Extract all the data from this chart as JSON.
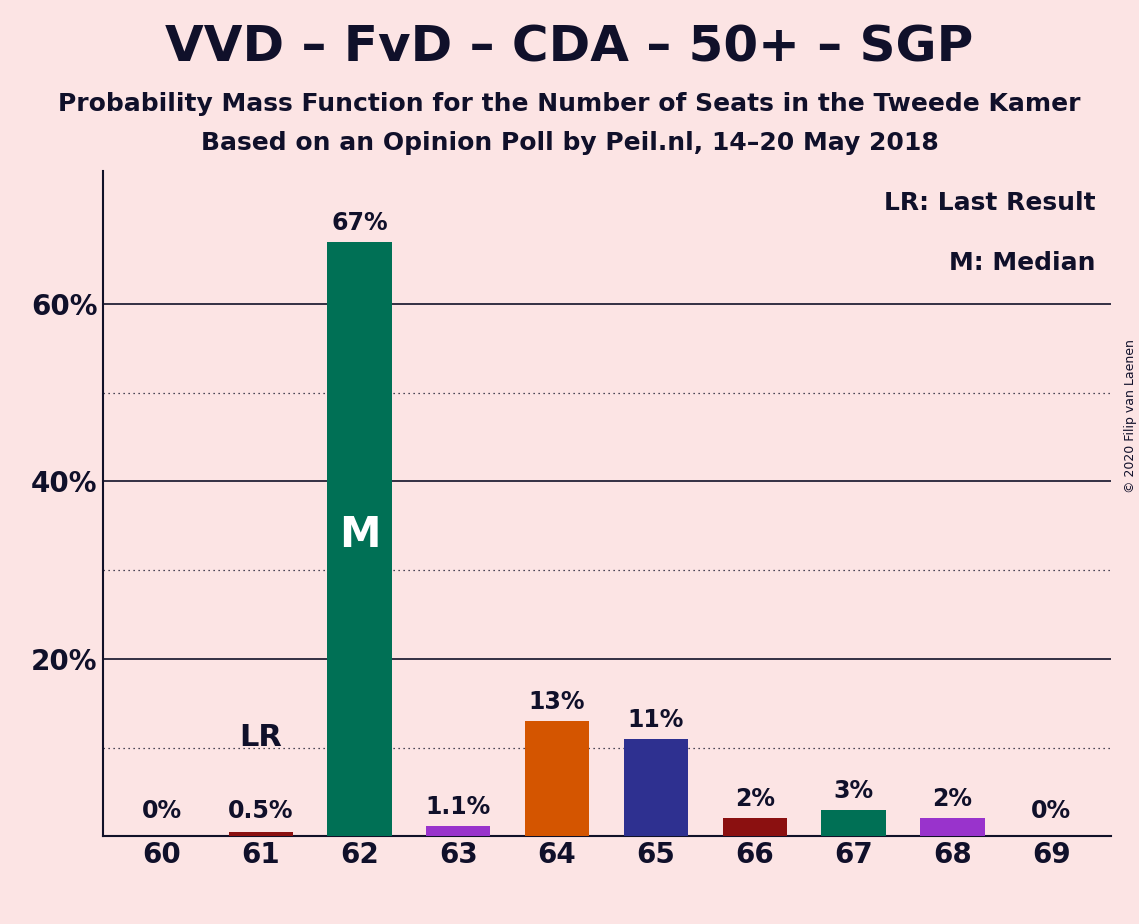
{
  "title": "VVD – FvD – CDA – 50+ – SGP",
  "subtitle1": "Probability Mass Function for the Number of Seats in the Tweede Kamer",
  "subtitle2": "Based on an Opinion Poll by Peil.nl, 14–20 May 2018",
  "copyright": "© 2020 Filip van Laenen",
  "legend_line1": "LR: Last Result",
  "legend_line2": "M: Median",
  "background_color": "#fce4e4",
  "categories": [
    60,
    61,
    62,
    63,
    64,
    65,
    66,
    67,
    68,
    69
  ],
  "values": [
    0.0,
    0.5,
    67.0,
    1.1,
    13.0,
    11.0,
    2.0,
    3.0,
    2.0,
    0.0
  ],
  "bar_colors": [
    "#f0c8c8",
    "#8b1010",
    "#007055",
    "#9933cc",
    "#d45500",
    "#2e3090",
    "#8b1010",
    "#007055",
    "#9933cc",
    "#f0c8c8"
  ],
  "label_texts": [
    "0%",
    "0.5%",
    "67%",
    "1.1%",
    "13%",
    "11%",
    "2%",
    "3%",
    "2%",
    "0%"
  ],
  "median_bar_index": 2,
  "lr_bar_index": 1,
  "ylim_max": 75,
  "ytick_values": [
    20,
    40,
    60
  ],
  "ytick_labels": [
    "20%",
    "40%",
    "60%"
  ],
  "solid_yticks": [
    20,
    40,
    60
  ],
  "dotted_yticks": [
    10,
    30,
    50
  ],
  "text_color": "#10102a",
  "title_fontsize": 36,
  "subtitle_fontsize": 18,
  "label_fontsize": 17,
  "tick_fontsize": 20,
  "annotation_fontsize": 22,
  "m_fontsize": 30,
  "lr_fontsize": 22
}
